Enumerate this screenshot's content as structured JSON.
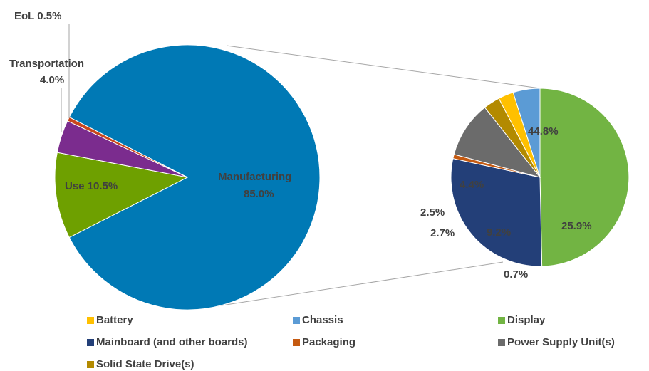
{
  "chart_data": [
    {
      "type": "pie",
      "slices": [
        {
          "label": "Manufacturing",
          "value": 85.0,
          "text": "85.0%",
          "color": "#0079B5"
        },
        {
          "label": "Use",
          "value": 10.5,
          "text": "10.5%",
          "color": "#6EA000"
        },
        {
          "label": "Transportation",
          "value": 4.0,
          "text": "4.0%",
          "color": "#7B2C8E"
        },
        {
          "label": "EoL",
          "value": 0.5,
          "text": "0.5%",
          "color": "#C8471C"
        }
      ]
    },
    {
      "type": "pie",
      "slices": [
        {
          "label": "Display",
          "value": 44.8,
          "text": "44.8%",
          "color": "#72B443"
        },
        {
          "label": "Mainboard (and other boards)",
          "value": 25.9,
          "text": "25.9%",
          "color": "#233F78"
        },
        {
          "label": "Packaging",
          "value": 0.7,
          "text": "0.7%",
          "color": "#C55A11"
        },
        {
          "label": "Power Supply Unit(s)",
          "value": 9.2,
          "text": "9.2%",
          "color": "#6B6B6B"
        },
        {
          "label": "Solid State Drive(s)",
          "value": 2.7,
          "text": "2.7%",
          "color": "#B38A00"
        },
        {
          "label": "Battery",
          "value": 2.5,
          "text": "2.5%",
          "color": "#FFC000"
        },
        {
          "label": "Chassis",
          "value": 4.4,
          "text": "4.4%",
          "color": "#5B9BD5"
        }
      ]
    }
  ],
  "labels": {
    "eol": "EoL 0.5%",
    "transportation_1": "Transportation",
    "transportation_2": "4.0%",
    "use": "Use 10.5%",
    "manufacturing_1": "Manufacturing",
    "manufacturing_2": "85.0%",
    "display": "44.8%",
    "chassis": "4.4%",
    "battery": "2.5%",
    "ssd": "2.7%",
    "psu": "9.2%",
    "mainboard": "25.9%",
    "packaging": "0.7%"
  },
  "legend": [
    {
      "label": "Battery",
      "color": "#FFC000"
    },
    {
      "label": "Chassis",
      "color": "#5B9BD5"
    },
    {
      "label": "Display",
      "color": "#72B443"
    },
    {
      "label": "Mainboard (and other boards)",
      "color": "#233F78"
    },
    {
      "label": "Packaging",
      "color": "#C55A11"
    },
    {
      "label": "Power Supply Unit(s)",
      "color": "#6B6B6B"
    },
    {
      "label": "Solid State Drive(s)",
      "color": "#B38A00"
    }
  ]
}
